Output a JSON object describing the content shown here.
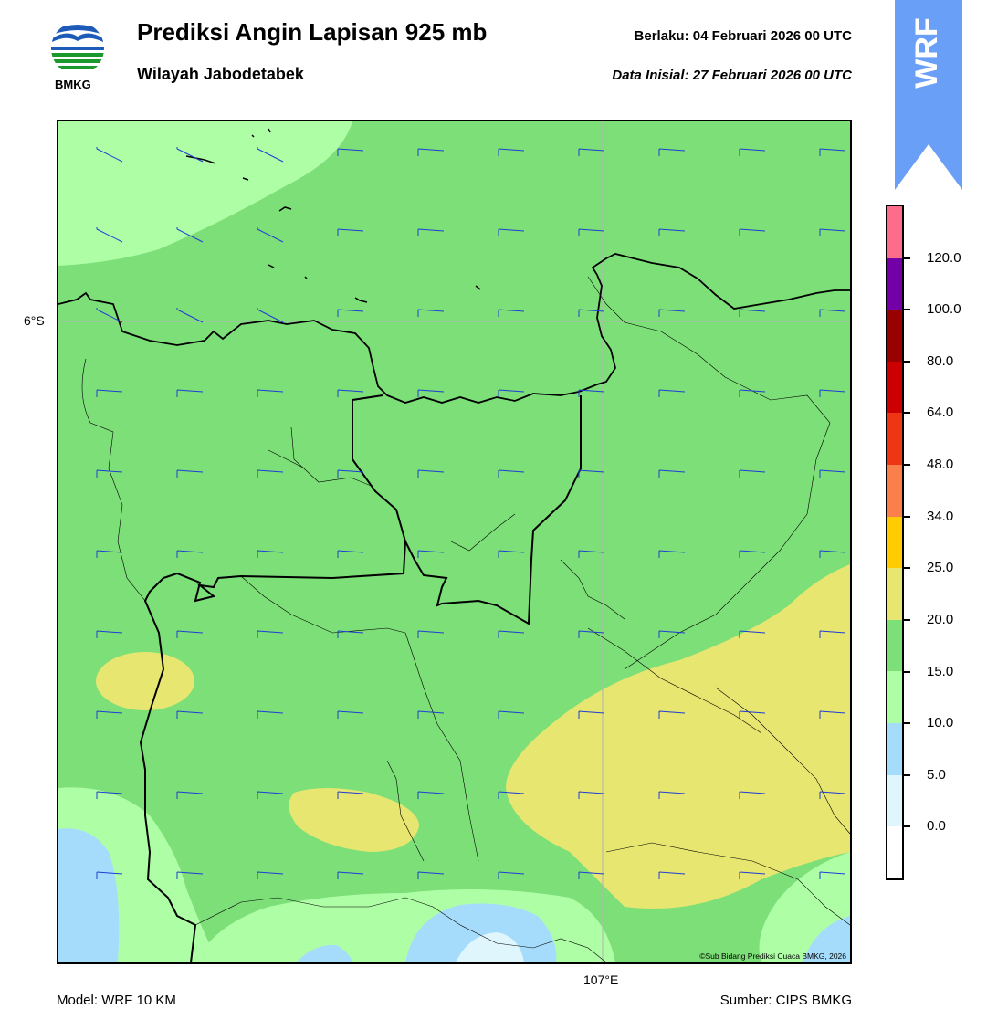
{
  "header": {
    "title": "Prediksi Angin Lapisan 925 mb",
    "subtitle": "Wilayah Jabodetabek",
    "valid": "Berlaku:  04 Februari 2026 00 UTC",
    "init": "Data Inisial:  27 Februari 2026 00 UTC"
  },
  "logo": {
    "text": "BMKG",
    "icon": "bmkg-logo"
  },
  "badge": {
    "text": "WRF",
    "color": "#6a9ff7"
  },
  "map": {
    "lat_label": "6°S",
    "lon_label": "107°E",
    "credit": "©Sub Bidang Prediksi Cuaca BMKG, 2026",
    "land_color": "#7ddf78",
    "barb_color": "#1f3cd6"
  },
  "colorbar": {
    "ticks": [
      "0.0",
      "5.0",
      "10.0",
      "15.0",
      "20.0",
      "25.0",
      "34.0",
      "48.0",
      "64.0",
      "80.0",
      "100.0",
      "120.0"
    ],
    "colors": [
      "#ffffff",
      "#e0f6fd",
      "#a6dcfb",
      "#aefea6",
      "#7ddf78",
      "#e6e670",
      "#fecc00",
      "#fb7f4b",
      "#ed3614",
      "#cc0000",
      "#990000",
      "#7200a6",
      "#fe6c8c"
    ]
  },
  "footer": {
    "model": "Model: WRF 10 KM",
    "source": "Sumber: CIPS BMKG"
  }
}
